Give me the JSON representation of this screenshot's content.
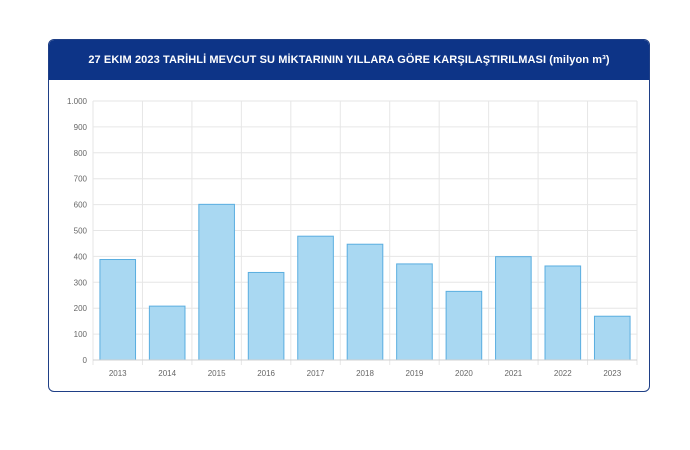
{
  "header": {
    "title": "27 EKIM 2023 TARİHLİ MEVCUT SU MİKTARININ YILLARA GÖRE KARŞILAŞTIRILMASI (milyon m³)"
  },
  "chart_data": {
    "type": "bar",
    "title": "27 EKIM 2023 TARİHLİ MEVCUT SU MİKTARININ YILLARA GÖRE KARŞILAŞTIRILMASI (milyon m³)",
    "categories": [
      "2013",
      "2014",
      "2015",
      "2016",
      "2017",
      "2018",
      "2019",
      "2020",
      "2021",
      "2022",
      "2023"
    ],
    "values": [
      388,
      208,
      601,
      338,
      478,
      447,
      371,
      265,
      399,
      363,
      169
    ],
    "ylim": [
      0,
      1000
    ],
    "yticks": [
      0,
      100,
      200,
      300,
      400,
      500,
      600,
      700,
      800,
      900,
      1000
    ],
    "ytick_labels": [
      "0",
      "100",
      "200",
      "300",
      "400",
      "500",
      "600",
      "700",
      "800",
      "900",
      "1.000"
    ],
    "grid": true,
    "colors": {
      "bar_fill": "#a9d8f2",
      "bar_stroke": "#5aaee0",
      "grid": "#e6e6e6",
      "header_bg": "#0d3487"
    }
  }
}
